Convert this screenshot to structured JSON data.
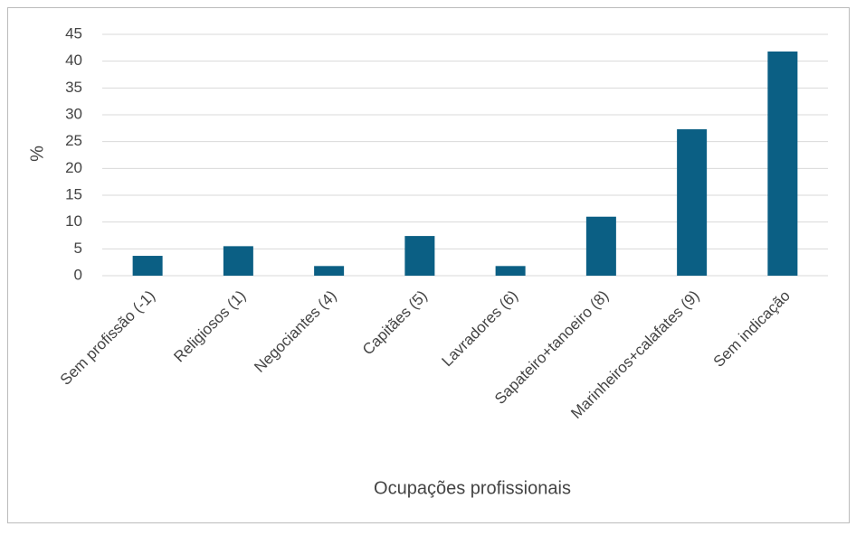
{
  "chart_data": {
    "type": "bar",
    "categories": [
      "Sem profissão (-1)",
      "Religiosos (1)",
      "Negociantes (4)",
      "Capitães (5)",
      "Lavradores (6)",
      "Sapateiro+tanoeiro (8)",
      "Marinheiros+calafates (9)",
      "Sem indicação"
    ],
    "values": [
      3.7,
      5.5,
      1.8,
      7.4,
      1.8,
      11,
      27.3,
      41.8
    ],
    "color": "#0b5f84",
    "ylim": [
      0,
      45
    ],
    "yticks": [
      0,
      5,
      10,
      15,
      20,
      25,
      30,
      35,
      40,
      45
    ],
    "grid": true,
    "x_label": "Ocupações profissionais",
    "y_label": "%"
  }
}
